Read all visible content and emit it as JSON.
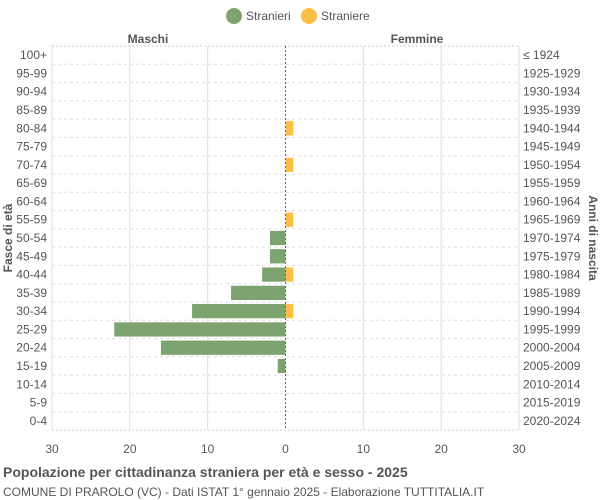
{
  "chart_data": {
    "type": "bar",
    "orientation": "horizontal-pyramid",
    "title": "Popolazione per cittadinanza straniera per età e sesso - 2025",
    "subtitle": "COMUNE DI PRAROLO (VC) - Dati ISTAT 1° gennaio 2025 - Elaborazione TUTTITALIA.IT",
    "ylabel_left": "Fasce di età",
    "ylabel_right": "Anni di nascita",
    "left_header": "Maschi",
    "right_header": "Femmine",
    "legend_position": "top",
    "xlim": [
      -30,
      30
    ],
    "x_ticks": [
      "30",
      "20",
      "10",
      "0",
      "10",
      "20",
      "30"
    ],
    "grid": true,
    "categories": [
      "100+",
      "95-99",
      "90-94",
      "85-89",
      "80-84",
      "75-79",
      "70-74",
      "65-69",
      "60-64",
      "55-59",
      "50-54",
      "45-49",
      "40-44",
      "35-39",
      "30-34",
      "25-29",
      "20-24",
      "15-19",
      "10-14",
      "5-9",
      "0-4"
    ],
    "birth_years": [
      "≤ 1924",
      "1925-1929",
      "1930-1934",
      "1935-1939",
      "1940-1944",
      "1945-1949",
      "1950-1954",
      "1955-1959",
      "1960-1964",
      "1965-1969",
      "1970-1974",
      "1975-1979",
      "1980-1984",
      "1985-1989",
      "1990-1994",
      "1995-1999",
      "2000-2004",
      "2005-2009",
      "2010-2014",
      "2015-2019",
      "2020-2024"
    ],
    "series": [
      {
        "name": "Stranieri",
        "color": "#7da36f",
        "side": "left",
        "values": [
          0,
          0,
          0,
          0,
          0,
          0,
          0,
          0,
          0,
          0,
          2,
          2,
          3,
          7,
          12,
          22,
          16,
          1,
          0,
          0,
          0
        ]
      },
      {
        "name": "Straniere",
        "color": "#fbbf45",
        "side": "right",
        "values": [
          0,
          0,
          0,
          0,
          1,
          0,
          1,
          0,
          0,
          1,
          0,
          0,
          1,
          0,
          1,
          0,
          0,
          0,
          0,
          0,
          0
        ]
      }
    ]
  }
}
